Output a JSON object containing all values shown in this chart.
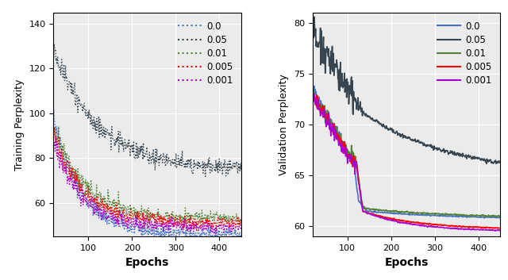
{
  "train_colors": {
    "0.0": "#4472C4",
    "0.05": "#36454F",
    "0.01": "#548235",
    "0.005": "#FF0000",
    "0.001": "#AA00CC"
  },
  "val_colors": {
    "0.0": "#4472C4",
    "0.05": "#36454F",
    "0.01": "#548235",
    "0.005": "#FF0000",
    "0.001": "#AA00CC"
  },
  "labels": [
    "0.0",
    "0.05",
    "0.01",
    "0.005",
    "0.001"
  ],
  "train_ylabel": "Training Perplexity",
  "val_ylabel": "Validation Perplexity",
  "xlabel": "Epochs",
  "train_ylim": [
    45,
    145
  ],
  "val_ylim": [
    59,
    81
  ],
  "xlim": [
    20,
    450
  ],
  "train_yticks": [
    60,
    80,
    100,
    120,
    140
  ],
  "val_yticks": [
    60,
    65,
    70,
    75,
    80
  ],
  "xticks": [
    100,
    200,
    300,
    400
  ],
  "background_color": "#ebebeb",
  "grid_color": "#ffffff"
}
